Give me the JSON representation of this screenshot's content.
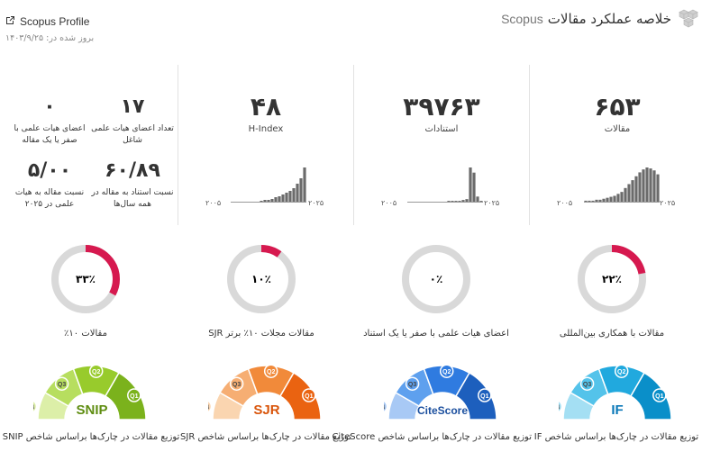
{
  "header": {
    "title": "خلاصه عملکرد مقالات",
    "title_source": "Scopus",
    "profile_link": "Scopus Profile",
    "updated": "بروز شده در: ۱۴۰۳/۹/۲۵"
  },
  "stats": {
    "articles": {
      "value": "۶۵۳",
      "label": "مقالات"
    },
    "citations": {
      "value": "۳۹۷۶۳",
      "label": "استنادات"
    },
    "hindex": {
      "value": "۴۸",
      "label": "H-Index"
    },
    "faculty_count": {
      "value": "۱۷",
      "label": "تعداد اعضای هیات علمی شاغل"
    },
    "faculty_zero": {
      "value": "۰",
      "label": "اعضای هیات علمی با صفر یا یک مقاله"
    },
    "citation_ratio": {
      "value": "۶۰/۸۹",
      "label": "نسبت استناد به مقاله در همه سال‌ها"
    },
    "article_ratio": {
      "value": "۵/۰۰",
      "label": "نسبت مقاله به هیات علمی در ۲۰۲۵"
    }
  },
  "year_start": "۲۰۰۵",
  "year_end": "۲۰۲۵",
  "spark_values": {
    "articles": [
      1,
      1,
      1,
      2,
      2,
      3,
      4,
      5,
      6,
      8,
      10,
      14,
      18,
      22,
      26,
      30,
      33,
      35,
      34,
      32,
      28
    ],
    "citations": [
      0,
      0,
      0,
      0,
      0,
      0,
      0,
      0,
      0,
      0,
      0,
      1,
      1,
      1,
      1,
      2,
      3,
      40,
      34,
      6,
      1
    ],
    "hindex": [
      0,
      0,
      0,
      0,
      0,
      0,
      0,
      0,
      1,
      2,
      2,
      3,
      5,
      6,
      8,
      10,
      12,
      15,
      20,
      26,
      38
    ]
  },
  "donuts": [
    {
      "key": "intl",
      "percent": 22,
      "text": "۲۲٪",
      "label": "مقالات با همکاری بین‌المللی",
      "color": "#d6194f"
    },
    {
      "key": "zero",
      "percent": 0,
      "text": "۰٪",
      "label": "اعضای هیات علمی با صفر یا یک استناد",
      "color": "#d6194f"
    },
    {
      "key": "sjr",
      "percent": 10,
      "text": "۱۰٪",
      "label": "مقالات مجلات ۱۰٪ برتر SJR",
      "color": "#d6194f"
    },
    {
      "key": "top10",
      "percent": 33,
      "text": "۳۳٪",
      "label": "مقالات ۱۰٪",
      "color": "#d6194f"
    }
  ],
  "gauges": [
    {
      "key": "if",
      "name": "IF",
      "label": "توزیع مقالات در چارک‌ها براساس شاخص IF",
      "colors": [
        "#0a8fc9",
        "#21a9de",
        "#54c3ea",
        "#a4dff3"
      ],
      "name_color": "#0a78b8"
    },
    {
      "key": "citescore",
      "name": "CiteScore",
      "label": "توزیع مقالات در چارک‌ها براساس شاخص CiteScore",
      "colors": [
        "#1d5fbd",
        "#2f7be0",
        "#5ea0ee",
        "#a8c9f5"
      ],
      "name_color": "#1b4f9e"
    },
    {
      "key": "sjr",
      "name": "SJR",
      "label": "توزیع مقالات در چارک‌ها براساس شاخص SJR",
      "colors": [
        "#ea6311",
        "#f18a3a",
        "#f6ae73",
        "#fad5b0"
      ],
      "name_color": "#d9550b"
    },
    {
      "key": "snip",
      "name": "SNIP",
      "label": "توزیع مقالات در چارک‌ها براساس شاخص SNIP",
      "colors": [
        "#7bb21c",
        "#98cb2c",
        "#b7de5f",
        "#dcefa8"
      ],
      "name_color": "#5f8d12"
    }
  ],
  "quartile_labels": [
    "Q1",
    "Q2",
    "Q3",
    "Q4"
  ]
}
